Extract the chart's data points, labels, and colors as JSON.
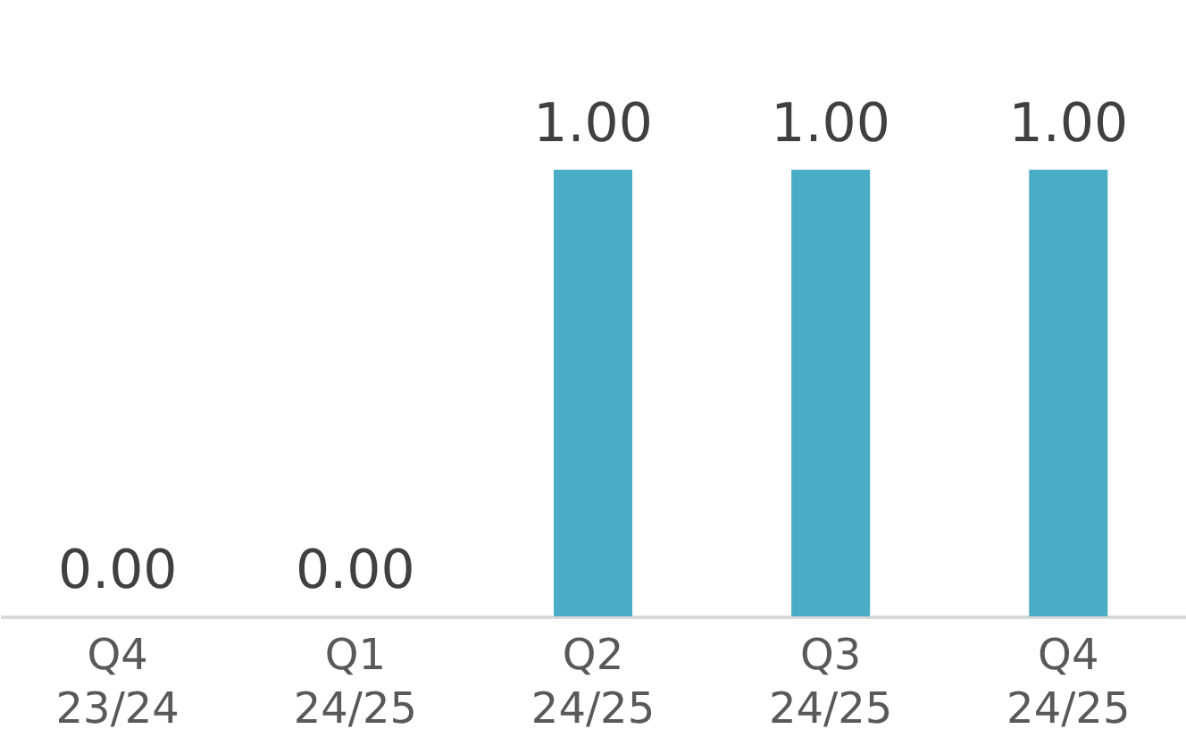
{
  "chart_data": {
    "type": "bar",
    "ylim": [
      0,
      1
    ],
    "categories": [
      "Q4 23/24",
      "Q1 24/25",
      "Q2 24/25",
      "Q3 24/25",
      "Q4 24/25"
    ],
    "values": [
      0,
      0,
      1,
      1,
      1
    ],
    "value_labels": [
      "0.00",
      "0.00",
      "1.00",
      "1.00",
      "1.00"
    ],
    "color": "#4bacc6"
  }
}
